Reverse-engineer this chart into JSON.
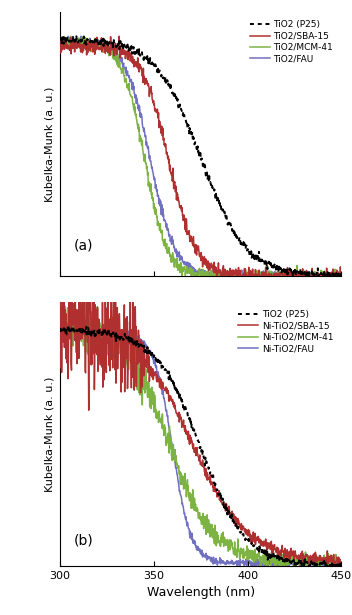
{
  "panel_a": {
    "label": "(a)",
    "xlabel": "",
    "ylabel": "Kubelka-Munk (a. u.)",
    "xlim": [
      300,
      450
    ],
    "legend": {
      "tio2_p25": "TiO2 (P25)",
      "tio2_sba": "TiO2/SBA-15",
      "tio2_mcm": "TiO2/MCM-41",
      "tio2_fau": "TiO2/FAU"
    },
    "colors": {
      "tio2_p25": "#000000",
      "tio2_sba": "#b03030",
      "tio2_mcm": "#7cb342",
      "tio2_fau": "#7070c0"
    }
  },
  "panel_b": {
    "label": "(b)",
    "xlabel": "Wavelength (nm)",
    "ylabel": "Kubelka-Munk (a. u.)",
    "xlim": [
      300,
      450
    ],
    "legend": {
      "tio2_p25": "TiO2 (P25)",
      "ni_sba": "Ni-TiO2/SBA-15",
      "ni_mcm": "Ni-TiO2/MCM-41",
      "ni_fau": "Ni-TiO2/FAU"
    },
    "colors": {
      "tio2_p25": "#000000",
      "ni_sba": "#b03030",
      "ni_mcm": "#7cb342",
      "ni_fau": "#7070c0"
    }
  },
  "background_color": "#ffffff",
  "tick_labels": [
    300,
    350,
    400,
    450
  ]
}
